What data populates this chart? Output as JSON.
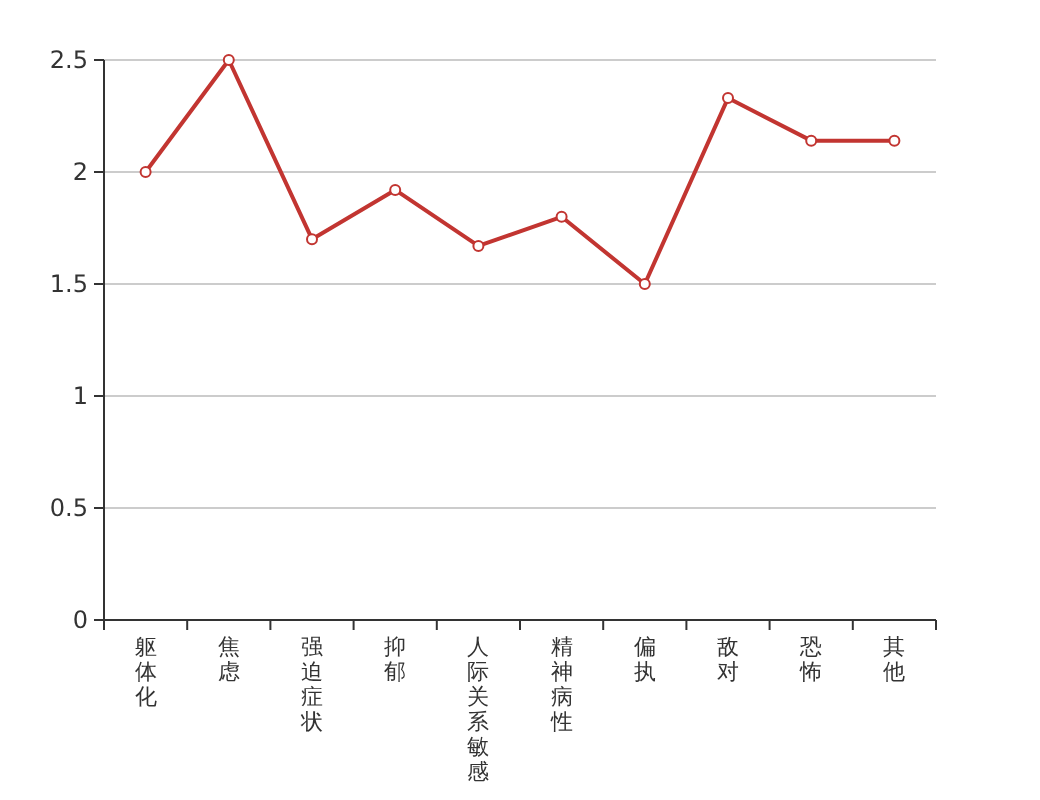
{
  "chart_data": {
    "type": "line",
    "categories": [
      "躯体化",
      "焦虑",
      "强迫症状",
      "抑郁",
      "人际关系敏感",
      "精神病性",
      "偏执",
      "敌对",
      "恐怖",
      "其他"
    ],
    "series": [
      {
        "color": "#c23531",
        "values": [
          2.0,
          2.5,
          1.7,
          1.92,
          1.67,
          1.8,
          1.5,
          2.33,
          2.14,
          2.14
        ]
      }
    ],
    "ylim": [
      0,
      2.5
    ],
    "yticks": [
      0,
      0.5,
      1,
      1.5,
      2,
      2.5
    ],
    "grid": "y",
    "marker": "circle"
  }
}
